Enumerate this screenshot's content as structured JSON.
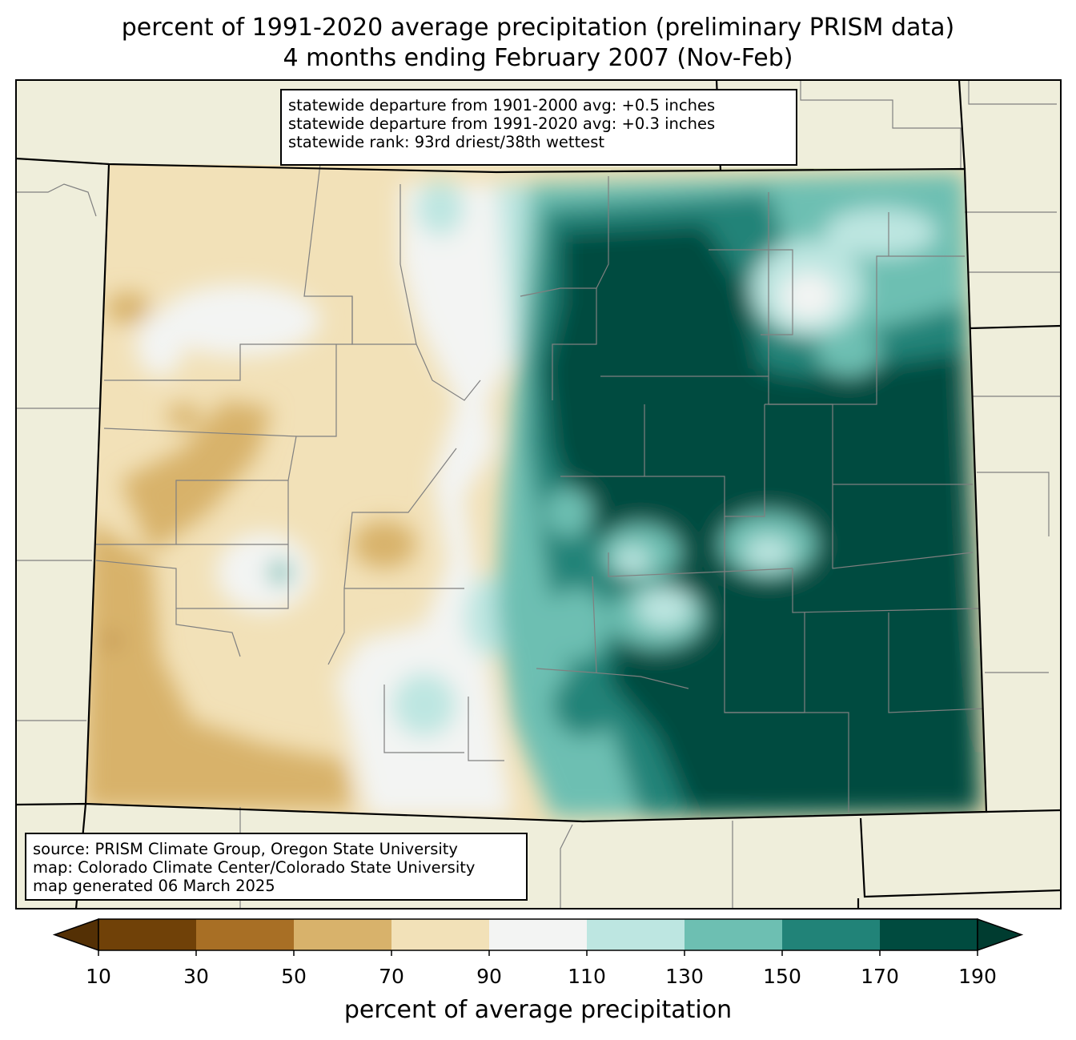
{
  "title": {
    "line1": "percent of 1991-2020 average precipitation (preliminary PRISM data)",
    "line2": "4 months ending February 2007 (Nov-Feb)"
  },
  "stats": {
    "line1": "statewide departure from 1901-2000 avg: +0.5 inches",
    "line2": "statewide departure from 1991-2020 avg: +0.3 inches",
    "line3": "statewide rank: 93rd driest/38th wettest"
  },
  "source": {
    "line1": "source: PRISM Climate Group, Oregon State University",
    "line2": "map: Colorado Climate Center/Colorado State University",
    "line3": "map generated 06 March 2025"
  },
  "colorbar": {
    "label": "percent of average precipitation",
    "ticks": [
      "10",
      "30",
      "50",
      "70",
      "90",
      "110",
      "130",
      "150",
      "170",
      "190"
    ],
    "colors": [
      "#704108",
      "#a86f25",
      "#d8b26b",
      "#f2e1b8",
      "#f3f4f3",
      "#bde6e1",
      "#6dbfb2",
      "#218378",
      "#004b3f"
    ],
    "under_color": "#543005",
    "over_color": "#003c30"
  },
  "map": {
    "background_color": "#efeedb",
    "state": "Colorado"
  }
}
